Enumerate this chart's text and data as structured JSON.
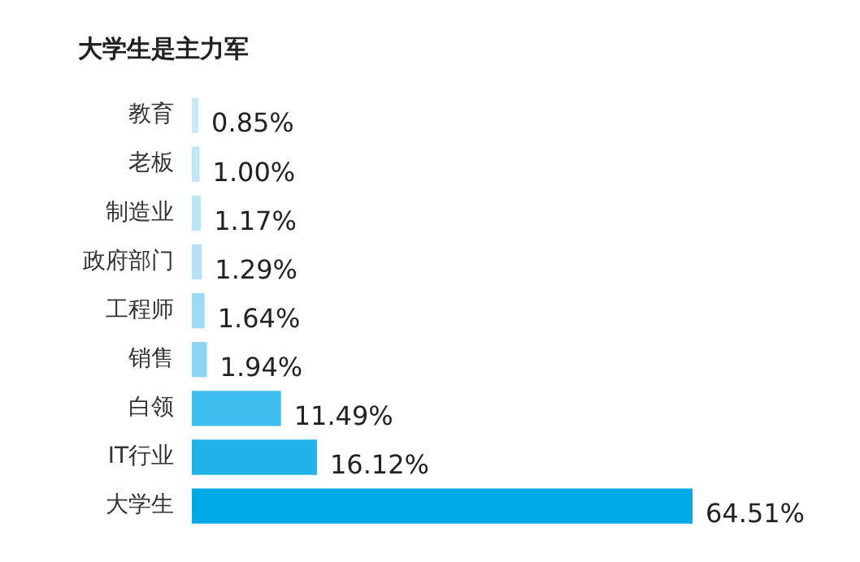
{
  "chart_data": {
    "type": "bar",
    "orientation": "horizontal",
    "title": "大学生是主力军",
    "categories": [
      "教育",
      "老板",
      "制造业",
      "政府部门",
      "工程师",
      "销售",
      "白领",
      "IT行业",
      "大学生"
    ],
    "values": [
      0.85,
      1.0,
      1.17,
      1.29,
      1.64,
      1.94,
      11.49,
      16.12,
      64.51
    ],
    "colors": [
      "#c9e9f7",
      "#c3e6f6",
      "#bde4f6",
      "#b5e1f5",
      "#9fd9f3",
      "#8fd3f2",
      "#3fbdee",
      "#22b3ea",
      "#00a8e7"
    ],
    "value_labels": [
      "0.85%",
      "1.00%",
      "1.17%",
      "1.29%",
      "1.64%",
      "1.94%",
      "11.49%",
      "16.12%",
      "64.51%"
    ],
    "legend": false
  }
}
